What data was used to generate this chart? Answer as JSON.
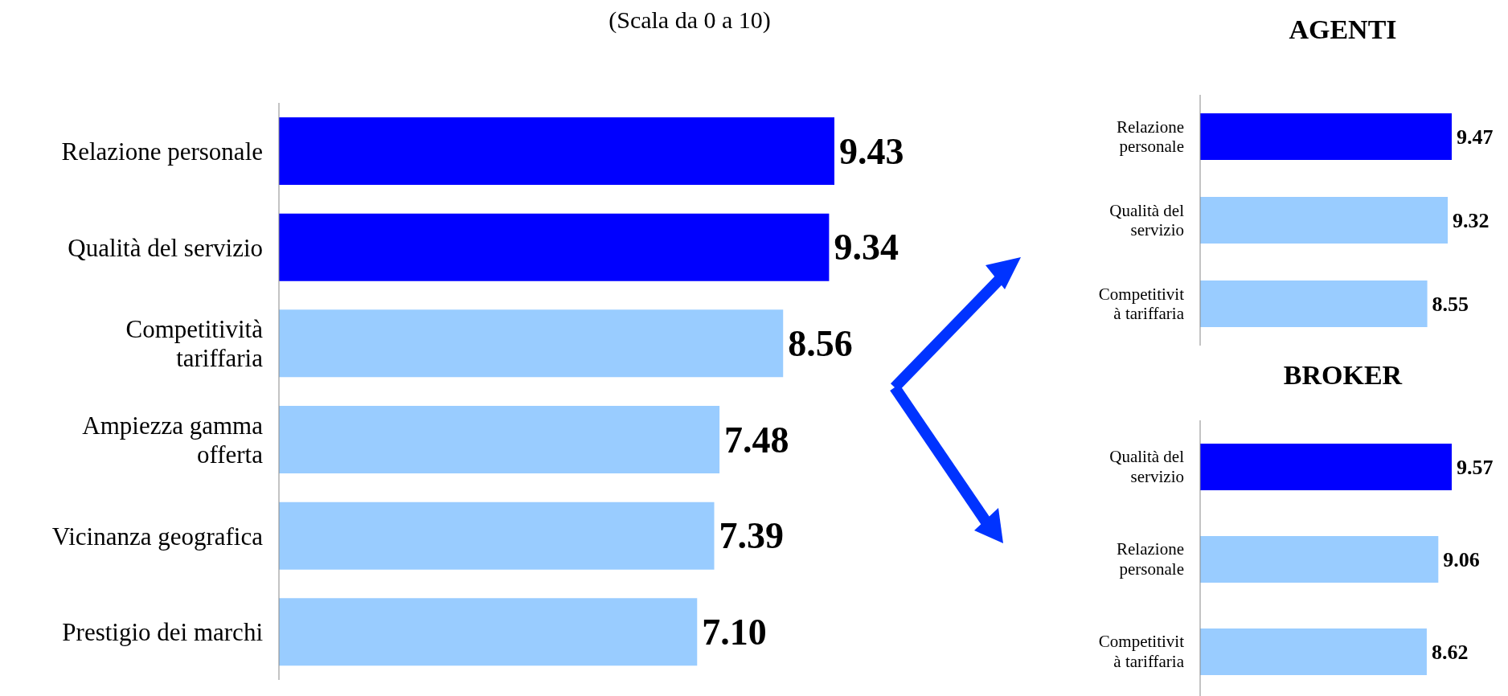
{
  "chart_data": [
    {
      "type": "bar",
      "orientation": "horizontal",
      "title": "(Scala da 0 a 10)",
      "categories": [
        "Relazione personale",
        "Qualità del servizio",
        "Competitività tariffaria",
        "Ampiezza gamma offerta",
        "Vicinanza geografica",
        "Prestigio dei marchi"
      ],
      "values": [
        9.43,
        9.34,
        8.56,
        7.48,
        7.39,
        7.1
      ],
      "value_labels": [
        "9.43",
        "9.34",
        "8.56",
        "7.48",
        "7.39",
        "7.10"
      ],
      "colors": [
        "#0000ff",
        "#0000ff",
        "#99ccff",
        "#99ccff",
        "#99ccff",
        "#99ccff"
      ],
      "tick_labels": "y"
    },
    {
      "type": "bar",
      "orientation": "horizontal",
      "title": "AGENTI",
      "categories": [
        "Relazione personale",
        "Qualità del servizio",
        "Competitivit à tariffaria"
      ],
      "values": [
        9.47,
        9.32,
        8.55
      ],
      "value_labels": [
        "9.47",
        "9.32",
        "8.55"
      ],
      "colors": [
        "#0000ff",
        "#99ccff",
        "#99ccff"
      ],
      "tick_labels": "y"
    },
    {
      "type": "bar",
      "orientation": "horizontal",
      "title": "BROKER",
      "categories": [
        "Qualità del servizio",
        "Relazione personale",
        "Competitivit à tariffaria"
      ],
      "values": [
        9.57,
        9.06,
        8.62
      ],
      "value_labels": [
        "9.57",
        "9.06",
        "8.62"
      ],
      "colors": [
        "#0000ff",
        "#99ccff",
        "#99ccff"
      ],
      "tick_labels": "y"
    }
  ]
}
